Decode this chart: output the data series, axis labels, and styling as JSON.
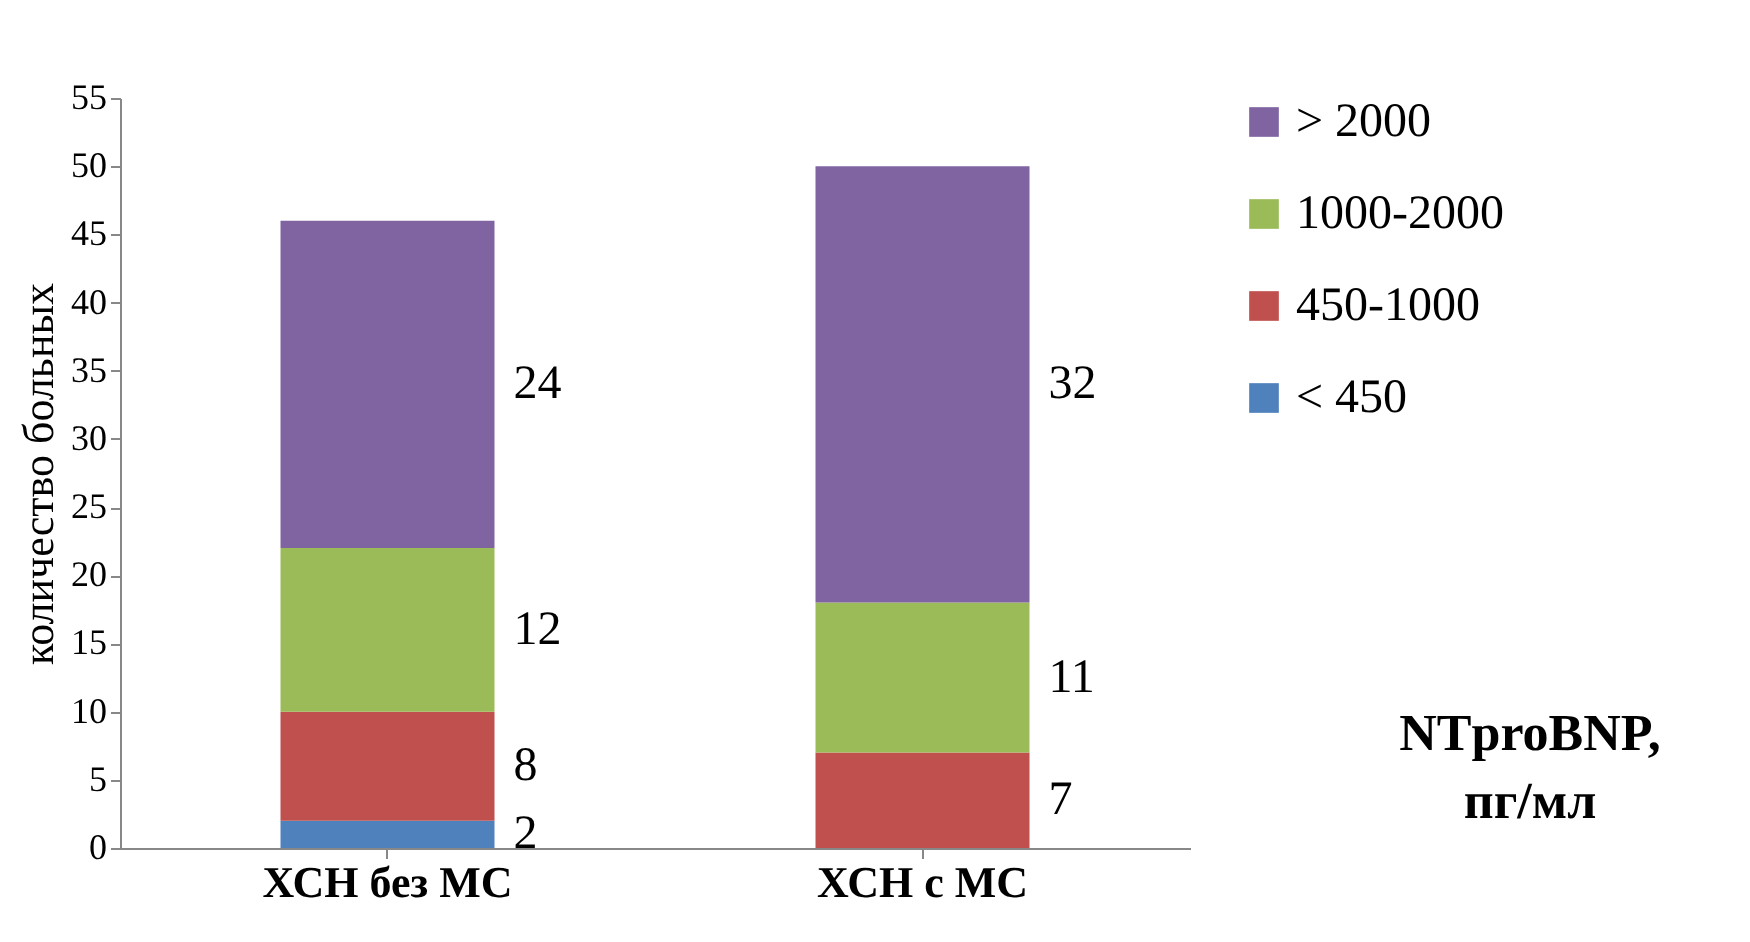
{
  "chart_data": {
    "type": "bar",
    "stacked": true,
    "ylabel": "количество больных",
    "categories": [
      "ХСН без МС",
      "ХСН с МС"
    ],
    "series": [
      {
        "name": "< 450",
        "color": "#4f81bd",
        "values": [
          2,
          0
        ],
        "value_labels": [
          "2",
          null
        ]
      },
      {
        "name": "450-1000",
        "color": "#c0504d",
        "values": [
          8,
          7
        ],
        "value_labels": [
          "8",
          "7"
        ]
      },
      {
        "name": "1000-2000",
        "color": "#9bbb59",
        "values": [
          12,
          11
        ],
        "value_labels": [
          "12",
          "11"
        ]
      },
      {
        "name": "> 2000",
        "color": "#8064a2",
        "values": [
          24,
          32
        ],
        "value_labels": [
          "24",
          "32"
        ]
      }
    ],
    "ylim": [
      0,
      55
    ],
    "yticks": [
      0,
      5,
      10,
      15,
      20,
      25,
      30,
      35,
      40,
      45,
      50,
      55
    ],
    "legend": "right",
    "grid": false,
    "annotations": [
      "NTproBNP,\nпг/мл"
    ]
  }
}
